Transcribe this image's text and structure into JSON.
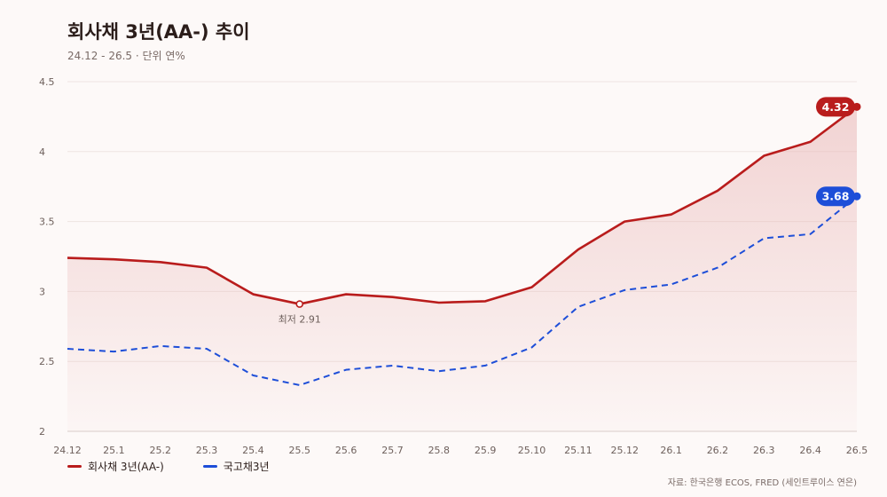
{
  "title": "회사채 3년(AA-) 추이",
  "subtitle": "24.12 - 26.5 · 단위 연%",
  "source": "자료: 한국은행 ECOS, FRED (세인트루이스 연은)",
  "colors": {
    "corp": "#b91c1c",
    "gov": "#1d4ed8",
    "fill": "#e8b4b4",
    "grid": "#eee4e2"
  },
  "chart_data": {
    "type": "line",
    "categories": [
      "24.12",
      "25.1",
      "25.2",
      "25.3",
      "25.4",
      "25.5",
      "25.6",
      "25.7",
      "25.8",
      "25.9",
      "25.10",
      "25.11",
      "25.12",
      "26.1",
      "26.2",
      "26.3",
      "26.4",
      "26.5"
    ],
    "ylim": [
      2,
      4.5
    ],
    "yticks": [
      "2",
      "2.5",
      "3",
      "3.5",
      "4",
      "4.5"
    ],
    "grid": true,
    "legend_position": "bottom-left",
    "series": [
      {
        "name": "회사채 3년(AA-)",
        "style": "solid",
        "area": true,
        "values": [
          3.24,
          3.23,
          3.21,
          3.17,
          2.98,
          2.91,
          2.98,
          2.96,
          2.92,
          2.93,
          3.03,
          3.3,
          3.5,
          3.55,
          3.72,
          3.97,
          4.07,
          4.32
        ]
      },
      {
        "name": "국고채3년",
        "style": "dashed",
        "area": false,
        "values": [
          2.59,
          2.57,
          2.61,
          2.59,
          2.4,
          2.33,
          2.44,
          2.47,
          2.43,
          2.47,
          2.6,
          2.89,
          3.01,
          3.05,
          3.17,
          3.38,
          3.41,
          3.68
        ]
      }
    ],
    "annotations": {
      "min_label": "최저 2.91",
      "min_index": 5,
      "corp_end_label": "4.32",
      "gov_end_label": "3.68"
    }
  }
}
